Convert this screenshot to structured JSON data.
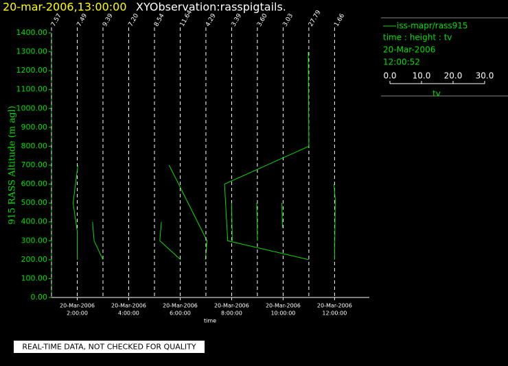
{
  "chart_data": {
    "type": "profile",
    "title": "20-mar-2006,13:00:00",
    "subtitle": "XYObservation:rasspigtails.",
    "y_label": "915 RASS Altitude (m agl)",
    "x_label": "time",
    "note": "REAL-TIME DATA, NOT CHECKED FOR QUALITY",
    "color": "#00e000",
    "xlim": [
      1,
      13.35
    ],
    "xticks": [
      {
        "value": 2,
        "date": "20-Mar-2006",
        "label": "2:00:00"
      },
      {
        "value": 4,
        "date": "20-Mar-2006",
        "label": "4:00:00"
      },
      {
        "value": 6,
        "date": "20-Mar-2006",
        "label": "6:00:00"
      },
      {
        "value": 8,
        "date": "20-Mar-2006",
        "label": "8:00:00"
      },
      {
        "value": 10,
        "date": "20-Mar-2006",
        "label": "10:00:00"
      },
      {
        "value": 12,
        "date": "20-Mar-2006",
        "label": "12:00:00"
      }
    ],
    "ylim": [
      0,
      1400
    ],
    "yticks": [
      {
        "value": 0,
        "label": "0.00"
      },
      {
        "value": 100,
        "label": "100.00"
      },
      {
        "value": 200,
        "label": "200.00"
      },
      {
        "value": 300,
        "label": "300.00"
      },
      {
        "value": 400,
        "label": "400.00"
      },
      {
        "value": 500,
        "label": "500.00"
      },
      {
        "value": 600,
        "label": "600.00"
      },
      {
        "value": 700,
        "label": "700.00"
      },
      {
        "value": 800,
        "label": "800.00"
      },
      {
        "value": 900,
        "label": "900.00"
      },
      {
        "value": 1000,
        "label": "1000.00"
      },
      {
        "value": 1100,
        "label": "1100.00"
      },
      {
        "value": 1200,
        "label": "1200.00"
      },
      {
        "value": 1300,
        "label": "1300.00"
      },
      {
        "value": 1400,
        "label": "1400.00"
      }
    ],
    "legend": {
      "name": "iss-mapr/rass915",
      "fields": "time : height : tv",
      "date": "20-Mar-2006",
      "time": "12:00:52",
      "axis_label": "tv",
      "lim": [
        0,
        30
      ],
      "ticks": [
        {
          "value": 0,
          "label": "0.0"
        },
        {
          "value": 10,
          "label": "10.0"
        },
        {
          "value": 20,
          "label": "20.0"
        },
        {
          "value": 30,
          "label": "30.0"
        }
      ]
    },
    "profiles": [
      {
        "time": 1,
        "label": "7.57",
        "heights": [],
        "values": []
      },
      {
        "time": 2,
        "label": "7.49",
        "heights": [
          200,
          350,
          500,
          700
        ],
        "values": [
          0,
          0,
          -1.3,
          0.2
        ]
      },
      {
        "time": 3,
        "label": "9.39",
        "heights": [
          200,
          300,
          400
        ],
        "values": [
          0,
          -2.8,
          -3.3
        ]
      },
      {
        "time": 4,
        "label": "7.20",
        "heights": [],
        "values": []
      },
      {
        "time": 5,
        "label": "8.54",
        "heights": [
          200,
          300,
          400
        ],
        "values": [
          8.3,
          1.7,
          2.2
        ]
      },
      {
        "time": 6,
        "label": "11.64",
        "heights": [
          200,
          300,
          700
        ],
        "values": [
          8.0,
          8.5,
          -3.5
        ]
      },
      {
        "time": 7,
        "label": "4.29",
        "heights": [],
        "values": []
      },
      {
        "time": 8,
        "label": "3.39",
        "heights": [
          300,
          500
        ],
        "values": [
          0.2,
          0
        ]
      },
      {
        "time": 9,
        "label": "3.60",
        "heights": [
          300,
          500
        ],
        "values": [
          0,
          -0.2
        ]
      },
      {
        "time": 10,
        "label": "3.03",
        "heights": [
          370,
          500
        ],
        "values": [
          -0.2,
          -0.4
        ]
      },
      {
        "time": 11,
        "label": "27.79",
        "heights": [
          200,
          300,
          600,
          800,
          1300
        ],
        "values": [
          0,
          -25.7,
          -26.7,
          0,
          -0.2
        ]
      },
      {
        "time": 12,
        "label": "1.66",
        "heights": [
          200,
          520,
          600
        ],
        "values": [
          0,
          0.2,
          -0.2
        ]
      }
    ]
  }
}
